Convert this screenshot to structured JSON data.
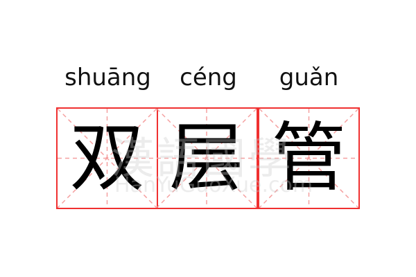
{
  "entries": [
    {
      "pinyin": "shuāng",
      "char": "双"
    },
    {
      "pinyin": "céng",
      "char": "层"
    },
    {
      "pinyin": "guǎn",
      "char": "管"
    }
  ],
  "watermark": {
    "chinese": "漢語國學",
    "latin": "HanYuGuoXue.com"
  },
  "colors": {
    "border": "#f03030",
    "guide": "#f5a0a0"
  }
}
